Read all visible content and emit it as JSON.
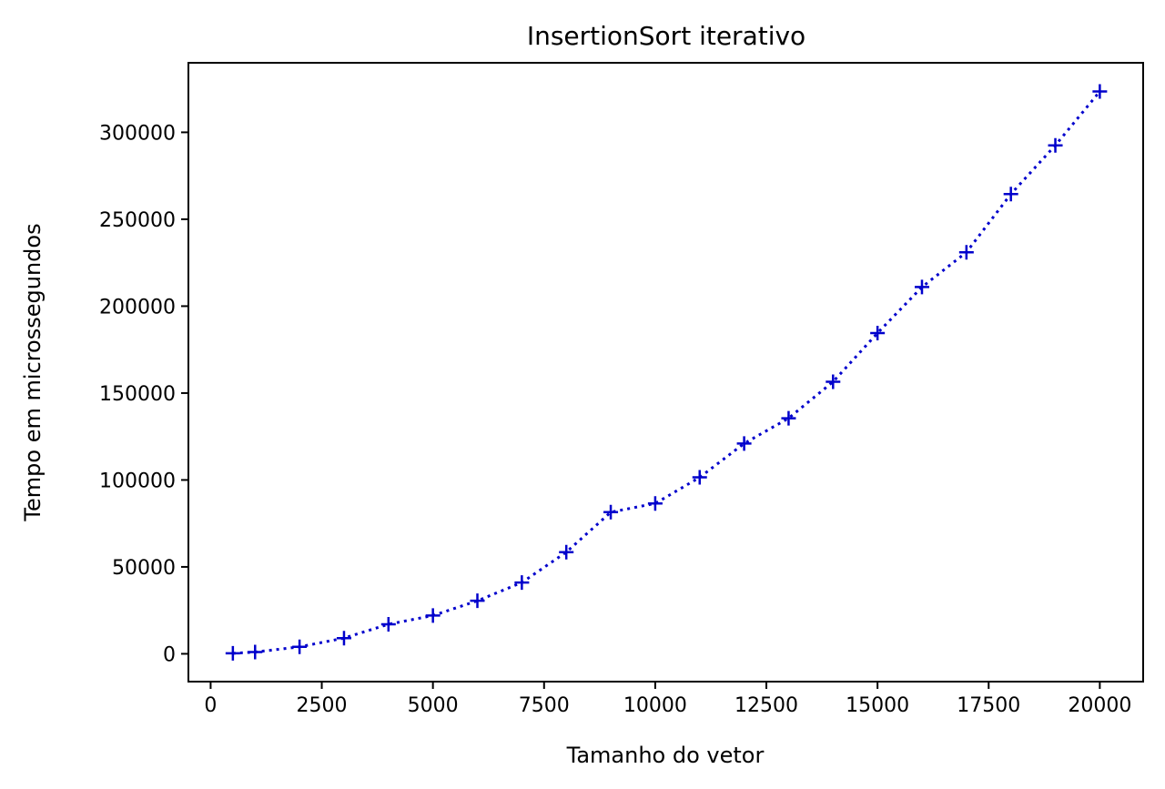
{
  "chart_data": {
    "type": "line",
    "title": "InsertionSort iterativo",
    "xlabel": "Tamanho do vetor",
    "ylabel": "Tempo em microssegundos",
    "xlim": [
      -500,
      20975
    ],
    "ylim": [
      -16000,
      340000
    ],
    "xticks": [
      0,
      2500,
      5000,
      7500,
      10000,
      12500,
      15000,
      17500,
      20000
    ],
    "yticks": [
      0,
      50000,
      100000,
      150000,
      200000,
      250000,
      300000
    ],
    "grid": false,
    "legend": "none",
    "series": [
      {
        "color": "#0000cc",
        "line_style": "dotted",
        "marker": "plus",
        "x": [
          500,
          1000,
          2000,
          3000,
          4000,
          5000,
          6000,
          7000,
          8000,
          9000,
          10000,
          11000,
          12000,
          13000,
          14000,
          15000,
          16000,
          17000,
          18000,
          19000,
          20000
        ],
        "y": [
          300,
          1000,
          4000,
          9000,
          17000,
          22000,
          30500,
          41000,
          58500,
          81500,
          86500,
          101500,
          121000,
          135500,
          156500,
          184500,
          211000,
          231000,
          264500,
          292500,
          323500
        ]
      }
    ]
  }
}
